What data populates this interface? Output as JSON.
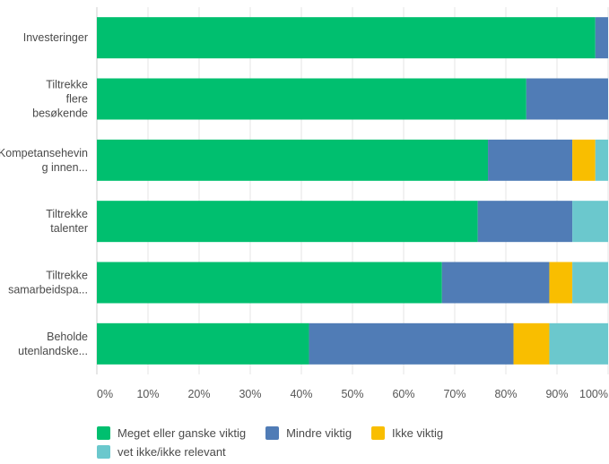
{
  "chart_data": {
    "type": "bar",
    "orientation": "horizontal",
    "stacked": true,
    "title": "",
    "xlabel": "",
    "ylabel": "",
    "xlim": [
      0,
      100
    ],
    "x_ticks": [
      "0%",
      "10%",
      "20%",
      "30%",
      "40%",
      "50%",
      "60%",
      "70%",
      "80%",
      "90%",
      "100%"
    ],
    "grid": true,
    "legend_position": "bottom-left",
    "categories": [
      [
        "Investeringer"
      ],
      [
        "Tiltrekke",
        "flere",
        "besøkende"
      ],
      [
        "Kompetansehevin",
        "g innen..."
      ],
      [
        "Tiltrekke",
        "talenter"
      ],
      [
        "Tiltrekke",
        "samarbeidspa..."
      ],
      [
        "Beholde",
        "utenlandske..."
      ]
    ],
    "series": [
      {
        "name": "Meget eller ganske viktig",
        "color": "#00bf6f",
        "values": [
          97.5,
          84,
          76.5,
          74.5,
          67.5,
          41.5
        ]
      },
      {
        "name": "Mindre viktig",
        "color": "#507cb6",
        "values": [
          2.5,
          16,
          16.5,
          18.5,
          21,
          40
        ]
      },
      {
        "name": "Ikke viktig",
        "color": "#f9be00",
        "values": [
          0,
          0,
          4.5,
          0,
          4.5,
          7
        ]
      },
      {
        "name": "vet ikke/ikke relevant",
        "color": "#6bc8cd",
        "values": [
          0,
          0,
          2.5,
          7,
          7,
          11.5
        ]
      }
    ]
  }
}
